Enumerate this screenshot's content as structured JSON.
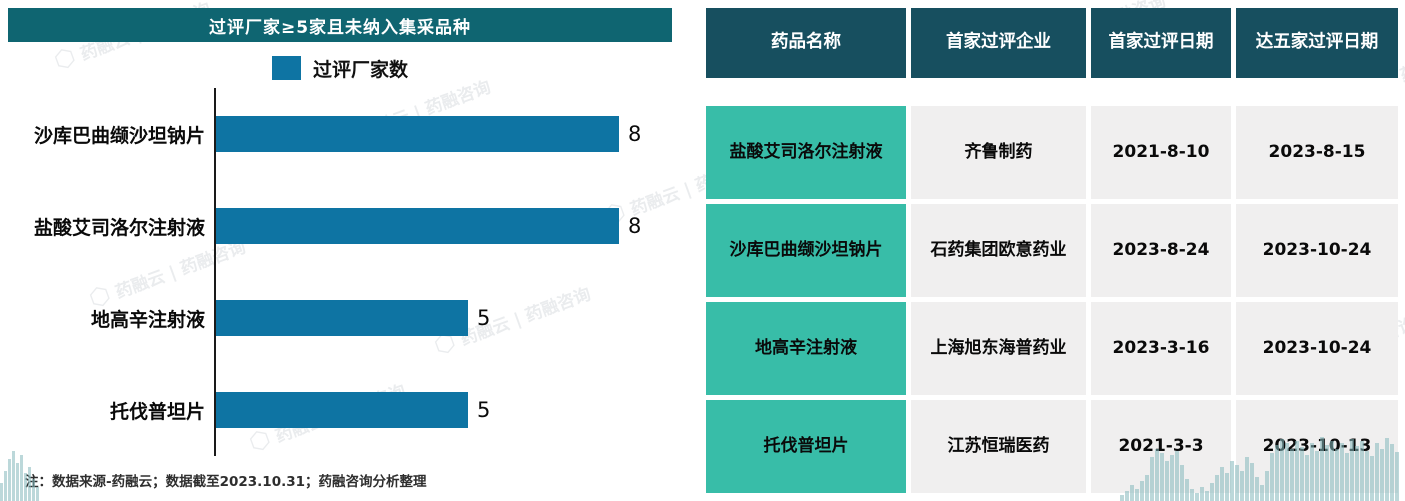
{
  "watermark_text": "药融云 | 药融咨询",
  "note": "注：数据来源-药融云；数据截至2023.10.31；药融咨询分析整理",
  "colors": {
    "chart_title_bar": "#0F6571",
    "table_header": "#174F5F",
    "bar": "#0E74A3",
    "highlight_cell": "#38BDA8",
    "plain_cell": "#F0EFEF"
  },
  "chart_data": [
    {
      "type": "bar",
      "orientation": "horizontal",
      "title": "过评厂家≥5家且未纳入集采品种",
      "legend": "过评厂家数",
      "categories": [
        "沙库巴曲缬沙坦钠片",
        "盐酸艾司洛尔注射液",
        "地高辛注射液",
        "托伐普坦片"
      ],
      "values": [
        8,
        8,
        5,
        5
      ],
      "xlim": [
        0,
        8
      ],
      "grid": false,
      "legend_position": "top-center",
      "bar_color": "#0E74A3"
    },
    {
      "type": "table",
      "headers": [
        "药品名称",
        "首家过评企业",
        "首家过评日期",
        "达五家过评日期"
      ],
      "rows": [
        [
          "盐酸艾司洛尔注射液",
          "齐鲁制药",
          "2021-8-10",
          "2023-8-15"
        ],
        [
          "沙库巴曲缬沙坦钠片",
          "石药集团欧意药业",
          "2023-8-24",
          "2023-10-24"
        ],
        [
          "地高辛注射液",
          "上海旭东海普药业",
          "2023-3-16",
          "2023-10-24"
        ],
        [
          "托伐普坦片",
          "江苏恒瑞医药",
          "2021-3-3",
          "2023-10-13"
        ]
      ]
    }
  ]
}
